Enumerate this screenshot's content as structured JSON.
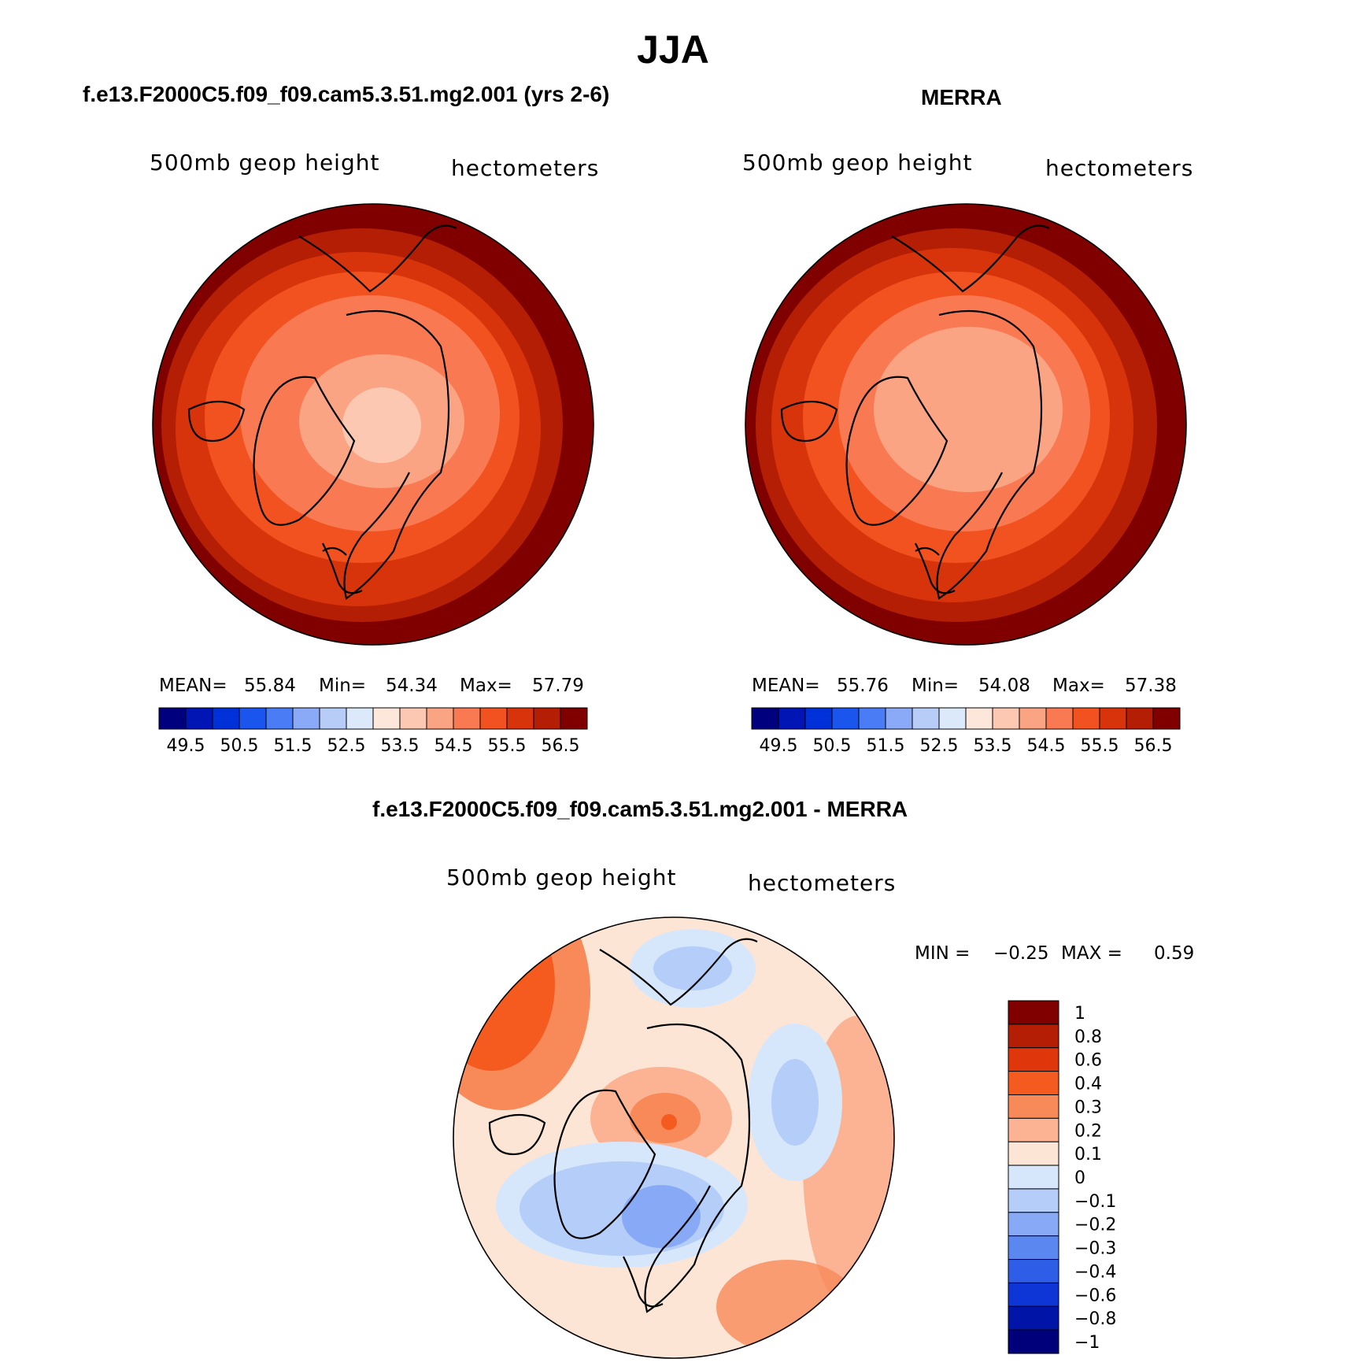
{
  "title": "JJA",
  "panels": {
    "model": {
      "title": "f.e13.F2000C5.f09_f09.cam5.3.51.mg2.001 (yrs 2-6)",
      "field": "500mb geop height",
      "units": "hectometers",
      "mean_label": "MEAN=",
      "mean": "55.84",
      "min_label": "Min=",
      "min": "54.34",
      "max_label": "Max=",
      "max": "57.79"
    },
    "obs": {
      "title": "MERRA",
      "field": "500mb geop height",
      "units": "hectometers",
      "mean_label": "MEAN=",
      "mean": "55.76",
      "min_label": "Min=",
      "min": "54.08",
      "max_label": "Max=",
      "max": "57.38"
    },
    "diff": {
      "title": "f.e13.F2000C5.f09_f09.cam5.3.51.mg2.001 - MERRA",
      "field": "500mb geop height",
      "units": "hectometers",
      "min_label": "MIN =",
      "min": "−0.25",
      "max_label": "MAX =",
      "max": "0.59"
    }
  },
  "scales": {
    "abs_colors": [
      "#00007f",
      "#0015b4",
      "#0030d8",
      "#1a55ee",
      "#4a7df5",
      "#8aa9f7",
      "#b7cdf8",
      "#dce9fb",
      "#fde7da",
      "#fcc8b2",
      "#fba484",
      "#f97a52",
      "#f2521f",
      "#d8340b",
      "#b31e04",
      "#800000"
    ],
    "abs_ticks": [
      "49.5",
      "50.5",
      "51.5",
      "52.5",
      "53.5",
      "54.5",
      "55.5",
      "56.5"
    ],
    "diff_colors": [
      "#800000",
      "#b31e04",
      "#df360b",
      "#f55a1f",
      "#f78a58",
      "#fbb394",
      "#fde5d6",
      "#d7e7fb",
      "#b4cdf9",
      "#88aaf6",
      "#5a87f0",
      "#2e5ee7",
      "#0e35d6",
      "#0015a8",
      "#00007a"
    ],
    "diff_ticks": [
      "1",
      "0.8",
      "0.6",
      "0.4",
      "0.3",
      "0.2",
      "0.1",
      "0",
      "−0.1",
      "−0.2",
      "−0.3",
      "−0.4",
      "−0.6",
      "−0.8",
      "−1"
    ]
  }
}
